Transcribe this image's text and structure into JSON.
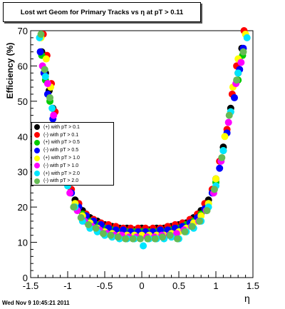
{
  "chart_data": {
    "type": "scatter",
    "title": "Lost wrt Geom for Primary Tracks vs   η at pT > 0.11",
    "xlabel": "η",
    "ylabel": "Efficiency (%)",
    "xlim": [
      -1.5,
      1.5
    ],
    "ylim": [
      0,
      70
    ],
    "xticks": [
      "-1.5",
      "-1",
      "-0.5",
      "0",
      "0.5",
      "1",
      "1.5"
    ],
    "yticks": [
      "0",
      "10",
      "20",
      "30",
      "40",
      "50",
      "60",
      "70"
    ],
    "grid": false,
    "legend_position": "left-middle",
    "series": [
      {
        "name": "(+) with pT > 0.1",
        "color": "#000000",
        "points": [
          [
            -1.35,
            64
          ],
          [
            -1.3,
            58
          ],
          [
            -1.25,
            53
          ],
          [
            -1.2,
            48
          ],
          [
            -1.1,
            37
          ],
          [
            -1.0,
            27
          ],
          [
            -0.9,
            22
          ],
          [
            -0.8,
            19
          ],
          [
            -0.7,
            17
          ],
          [
            -0.6,
            16
          ],
          [
            -0.5,
            15
          ],
          [
            -0.4,
            14.5
          ],
          [
            -0.3,
            14
          ],
          [
            -0.2,
            14
          ],
          [
            -0.1,
            13.5
          ],
          [
            0.0,
            14
          ],
          [
            0.1,
            13.5
          ],
          [
            0.2,
            14
          ],
          [
            0.3,
            14
          ],
          [
            0.4,
            14.5
          ],
          [
            0.5,
            15
          ],
          [
            0.6,
            15.5
          ],
          [
            0.7,
            17
          ],
          [
            0.8,
            19
          ],
          [
            0.9,
            22
          ],
          [
            1.0,
            28
          ],
          [
            1.1,
            37
          ],
          [
            1.2,
            48
          ],
          [
            1.3,
            58
          ],
          [
            1.35,
            65
          ]
        ]
      },
      {
        "name": "(-) with pT > 0.1",
        "color": "#ff0000",
        "points": [
          [
            -1.33,
            69
          ],
          [
            -1.28,
            63
          ],
          [
            -1.22,
            55
          ],
          [
            -1.17,
            47
          ],
          [
            -1.05,
            33
          ],
          [
            -0.95,
            25
          ],
          [
            -0.85,
            21
          ],
          [
            -0.75,
            18
          ],
          [
            -0.65,
            16.5
          ],
          [
            -0.55,
            15.5
          ],
          [
            -0.45,
            15
          ],
          [
            -0.35,
            14.5
          ],
          [
            -0.25,
            14
          ],
          [
            -0.15,
            14
          ],
          [
            -0.05,
            14
          ],
          [
            0.05,
            14
          ],
          [
            0.15,
            14
          ],
          [
            0.25,
            14
          ],
          [
            0.35,
            14.5
          ],
          [
            0.45,
            15
          ],
          [
            0.55,
            15.5
          ],
          [
            0.65,
            16.5
          ],
          [
            0.75,
            18
          ],
          [
            0.85,
            21
          ],
          [
            0.95,
            25
          ],
          [
            1.05,
            33
          ],
          [
            1.15,
            42
          ],
          [
            1.22,
            52
          ],
          [
            1.28,
            60
          ],
          [
            1.38,
            70
          ]
        ]
      },
      {
        "name": "(+) with pT > 0.5",
        "color": "#00cc00",
        "points": [
          [
            -1.35,
            63
          ],
          [
            -1.3,
            56
          ],
          [
            -1.24,
            50
          ],
          [
            -1.1,
            36
          ],
          [
            -1.0,
            27
          ],
          [
            -0.9,
            21
          ],
          [
            -0.8,
            18
          ],
          [
            -0.7,
            16
          ],
          [
            -0.6,
            15
          ],
          [
            -0.5,
            14
          ],
          [
            -0.4,
            13.5
          ],
          [
            -0.3,
            13
          ],
          [
            -0.2,
            13
          ],
          [
            -0.1,
            13
          ],
          [
            0.0,
            13
          ],
          [
            0.1,
            13
          ],
          [
            0.2,
            13
          ],
          [
            0.3,
            13
          ],
          [
            0.4,
            13.5
          ],
          [
            0.5,
            14
          ],
          [
            0.6,
            15
          ],
          [
            0.7,
            16
          ],
          [
            0.8,
            18
          ],
          [
            0.9,
            21
          ],
          [
            1.0,
            27
          ],
          [
            1.1,
            36
          ],
          [
            1.2,
            47
          ],
          [
            1.3,
            56
          ],
          [
            1.36,
            63
          ]
        ]
      },
      {
        "name": "(-) with pT > 0.5",
        "color": "#0000ff",
        "points": [
          [
            -1.37,
            64
          ],
          [
            -1.32,
            58
          ],
          [
            -1.27,
            52
          ],
          [
            -1.2,
            45
          ],
          [
            -1.05,
            32
          ],
          [
            -0.95,
            24
          ],
          [
            -0.85,
            20
          ],
          [
            -0.75,
            17.5
          ],
          [
            -0.65,
            16
          ],
          [
            -0.55,
            15
          ],
          [
            -0.45,
            14
          ],
          [
            -0.35,
            13.5
          ],
          [
            -0.25,
            13.5
          ],
          [
            -0.15,
            13
          ],
          [
            -0.05,
            13
          ],
          [
            0.05,
            13
          ],
          [
            0.15,
            13
          ],
          [
            0.25,
            13.5
          ],
          [
            0.35,
            13.5
          ],
          [
            0.45,
            14
          ],
          [
            0.55,
            14.5
          ],
          [
            0.65,
            15.5
          ],
          [
            0.75,
            17
          ],
          [
            0.85,
            19.5
          ],
          [
            0.95,
            24
          ],
          [
            1.05,
            31
          ],
          [
            1.15,
            41
          ],
          [
            1.25,
            51
          ],
          [
            1.32,
            59
          ],
          [
            1.37,
            65
          ]
        ]
      },
      {
        "name": "(+) with pT > 1.0",
        "color": "#ffff00",
        "points": [
          [
            -1.36,
            68
          ],
          [
            -1.29,
            62
          ],
          [
            -1.23,
            54
          ],
          [
            -1.12,
            40
          ],
          [
            -1.0,
            28
          ],
          [
            -0.9,
            21
          ],
          [
            -0.8,
            17.5
          ],
          [
            -0.7,
            15.5
          ],
          [
            -0.6,
            14
          ],
          [
            -0.5,
            13
          ],
          [
            -0.4,
            12.5
          ],
          [
            -0.3,
            12
          ],
          [
            -0.2,
            12
          ],
          [
            -0.1,
            12
          ],
          [
            0.0,
            12
          ],
          [
            0.1,
            12
          ],
          [
            0.2,
            12
          ],
          [
            0.3,
            12
          ],
          [
            0.4,
            12.5
          ],
          [
            0.5,
            13
          ],
          [
            0.6,
            14
          ],
          [
            0.7,
            15.5
          ],
          [
            0.8,
            17.5
          ],
          [
            0.9,
            21
          ],
          [
            1.0,
            28
          ],
          [
            1.12,
            40
          ],
          [
            1.23,
            54
          ],
          [
            1.3,
            62
          ],
          [
            1.4,
            69
          ]
        ]
      },
      {
        "name": "(-) with pT > 1.0",
        "color": "#ff00ff",
        "points": [
          [
            -1.34,
            60
          ],
          [
            -1.27,
            55
          ],
          [
            -1.19,
            46
          ],
          [
            -1.07,
            33
          ],
          [
            -0.97,
            24
          ],
          [
            -0.87,
            19
          ],
          [
            -0.77,
            16
          ],
          [
            -0.67,
            14.5
          ],
          [
            -0.57,
            13.5
          ],
          [
            -0.47,
            12.5
          ],
          [
            -0.37,
            12
          ],
          [
            -0.27,
            12
          ],
          [
            -0.17,
            11.5
          ],
          [
            -0.07,
            11.5
          ],
          [
            0.07,
            11.5
          ],
          [
            0.17,
            11.5
          ],
          [
            0.27,
            12
          ],
          [
            0.37,
            12
          ],
          [
            0.47,
            12.5
          ],
          [
            0.57,
            13.5
          ],
          [
            0.67,
            14.5
          ],
          [
            0.77,
            16
          ],
          [
            0.87,
            19
          ],
          [
            0.97,
            24
          ],
          [
            1.07,
            33
          ],
          [
            1.17,
            44
          ],
          [
            1.27,
            55
          ],
          [
            1.34,
            61
          ]
        ]
      },
      {
        "name": "(+) with pT > 2.0",
        "color": "#00e5ff",
        "points": [
          [
            -1.38,
            68
          ],
          [
            -1.3,
            57
          ],
          [
            -1.21,
            48
          ],
          [
            -1.13,
            40
          ],
          [
            -1.0,
            26
          ],
          [
            -0.9,
            20
          ],
          [
            -0.8,
            16
          ],
          [
            -0.7,
            14
          ],
          [
            -0.6,
            13
          ],
          [
            -0.5,
            12
          ],
          [
            -0.4,
            11.5
          ],
          [
            -0.3,
            11
          ],
          [
            -0.2,
            11
          ],
          [
            -0.1,
            11
          ],
          [
            0.02,
            9
          ],
          [
            0.1,
            11
          ],
          [
            0.2,
            11
          ],
          [
            0.3,
            11
          ],
          [
            0.4,
            11.5
          ],
          [
            0.5,
            11
          ],
          [
            0.6,
            13
          ],
          [
            0.7,
            14
          ],
          [
            0.8,
            16
          ],
          [
            0.9,
            20
          ],
          [
            1.0,
            26
          ],
          [
            1.1,
            36
          ],
          [
            1.2,
            47
          ],
          [
            1.3,
            58
          ],
          [
            1.42,
            68
          ]
        ]
      },
      {
        "name": "(-) with pT > 2.0",
        "color": "#66bb55",
        "points": [
          [
            -1.36,
            69
          ],
          [
            -1.31,
            59
          ],
          [
            -1.24,
            51
          ],
          [
            -1.14,
            41
          ],
          [
            -1.02,
            28
          ],
          [
            -0.92,
            20
          ],
          [
            -0.82,
            17
          ],
          [
            -0.72,
            15
          ],
          [
            -0.62,
            14
          ],
          [
            -0.52,
            12.5
          ],
          [
            -0.42,
            12
          ],
          [
            -0.32,
            11.5
          ],
          [
            -0.22,
            11
          ],
          [
            -0.12,
            11
          ],
          [
            -0.02,
            11
          ],
          [
            0.08,
            11
          ],
          [
            0.18,
            11
          ],
          [
            0.28,
            11.5
          ],
          [
            0.38,
            12
          ],
          [
            0.48,
            11
          ],
          [
            0.58,
            13
          ],
          [
            0.68,
            14.5
          ],
          [
            0.78,
            16
          ],
          [
            0.88,
            19
          ],
          [
            0.98,
            25
          ],
          [
            1.08,
            34
          ],
          [
            1.18,
            46
          ],
          [
            1.28,
            56
          ],
          [
            1.37,
            64
          ]
        ]
      }
    ]
  },
  "footer": {
    "timestamp": "Wed Nov  9 10:45:21 2011"
  }
}
